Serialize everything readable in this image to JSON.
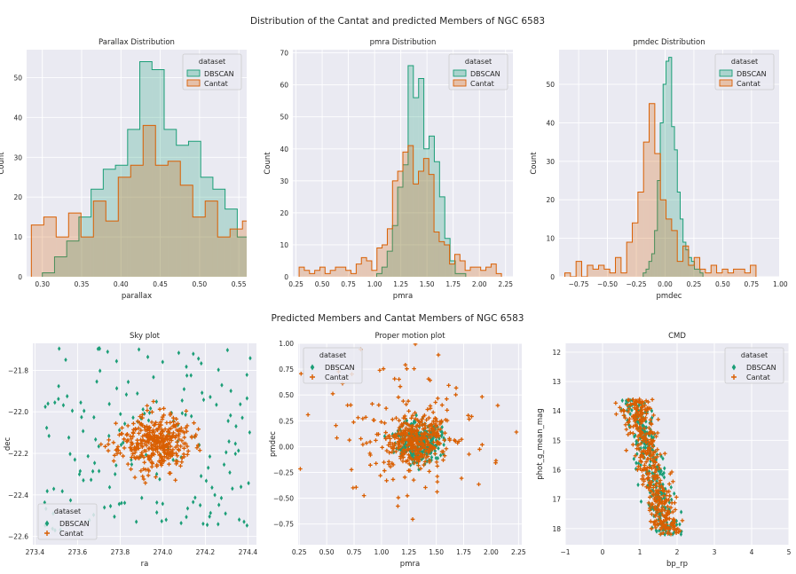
{
  "figure": {
    "title_top": "Distribution of the Cantat and predicted Members of NGC 6583",
    "title_bottom": "Predicted Members and Cantat Members of NGC 6583"
  },
  "colors": {
    "dbscan": "#1b9e77",
    "cantat": "#d95f02",
    "panel_bg": "#eaeaf2",
    "grid": "#ffffff"
  },
  "legend": {
    "title": "dataset",
    "dbscan_label": "DBSCAN",
    "cantat_label": "Cantat"
  },
  "chart_data": [
    {
      "type": "histogram",
      "title": "Parallax Distribution",
      "xlabel": "parallax",
      "ylabel": "Count",
      "xlim": [
        0.28,
        0.56
      ],
      "ylim": [
        0,
        57
      ],
      "xticks": [
        0.3,
        0.35,
        0.4,
        0.45,
        0.5,
        0.55
      ],
      "xtick_labels": [
        "0.30",
        "0.35",
        "0.40",
        "0.45",
        "0.50",
        "0.55"
      ],
      "yticks": [
        0,
        10,
        20,
        30,
        40,
        50
      ],
      "legend_loc": "upper right",
      "series": [
        {
          "name": "DBSCAN",
          "bin_start": 0.3,
          "bin_width": 0.0155,
          "counts": [
            1,
            5,
            9,
            15,
            22,
            27,
            28,
            37,
            54,
            52,
            37,
            33,
            34,
            25,
            22,
            17,
            10,
            7,
            5,
            5,
            1
          ]
        },
        {
          "name": "Cantat",
          "bin_start": 0.286,
          "bin_width": 0.0158,
          "counts": [
            13,
            15,
            10,
            16,
            10,
            19,
            14,
            25,
            28,
            38,
            28,
            29,
            23,
            15,
            19,
            10,
            12,
            14,
            7,
            7,
            16,
            12,
            13
          ]
        }
      ]
    },
    {
      "type": "histogram",
      "title": "pmra Distribution",
      "xlabel": "pmra",
      "ylabel": "Count",
      "xlim": [
        0.22,
        2.32
      ],
      "ylim": [
        0,
        71
      ],
      "xticks": [
        0.25,
        0.5,
        0.75,
        1.0,
        1.25,
        1.5,
        1.75,
        2.0,
        2.25
      ],
      "xtick_labels": [
        "0.25",
        "0.50",
        "0.75",
        "1.00",
        "1.25",
        "1.50",
        "1.75",
        "2.00",
        "2.25"
      ],
      "yticks": [
        0,
        10,
        20,
        30,
        40,
        50,
        60,
        70
      ],
      "legend_loc": "upper right",
      "series": [
        {
          "name": "DBSCAN",
          "bin_start": 1.02,
          "bin_width": 0.05,
          "counts": [
            1,
            3,
            8,
            16,
            28,
            35,
            66,
            56,
            62,
            40,
            44,
            36,
            25,
            12,
            5,
            1,
            1
          ]
        },
        {
          "name": "Cantat",
          "bin_start": 0.28,
          "bin_width": 0.0495,
          "counts": [
            3,
            2,
            1,
            2,
            3,
            1,
            2,
            3,
            3,
            2,
            1,
            4,
            6,
            5,
            2,
            9,
            10,
            15,
            30,
            33,
            39,
            41,
            29,
            33,
            37,
            32,
            14,
            11,
            10,
            4,
            7,
            5,
            2,
            3,
            3,
            2,
            3,
            4,
            1
          ]
        }
      ]
    },
    {
      "type": "histogram",
      "title": "pmdec Distribution",
      "xlabel": "pmdec",
      "ylabel": "Count",
      "xlim": [
        -0.92,
        0.99
      ],
      "ylim": [
        0,
        59
      ],
      "xticks": [
        -0.75,
        -0.5,
        -0.25,
        0.0,
        0.25,
        0.5,
        0.75,
        1.0
      ],
      "xtick_labels": [
        "−0.75",
        "−0.50",
        "−0.25",
        "0.00",
        "0.25",
        "0.50",
        "0.75",
        "1.00"
      ],
      "yticks": [
        0,
        10,
        20,
        30,
        40,
        50
      ],
      "legend_loc": "upper right",
      "series": [
        {
          "name": "DBSCAN",
          "bin_start": -0.19,
          "bin_width": 0.0247,
          "counts": [
            1,
            2,
            4,
            6,
            12,
            25,
            40,
            50,
            56,
            57,
            39,
            33,
            22,
            15,
            9,
            7,
            5,
            4,
            2,
            2,
            1
          ]
        },
        {
          "name": "Cantat",
          "bin_start": -0.87,
          "bin_width": 0.0488,
          "counts": [
            1,
            0,
            4,
            0,
            3,
            2,
            3,
            2,
            1,
            5,
            1,
            9,
            14,
            22,
            35,
            45,
            32,
            20,
            15,
            12,
            4,
            8,
            3,
            5,
            2,
            1,
            3,
            1,
            2,
            1,
            2,
            2,
            1,
            3
          ]
        }
      ]
    },
    {
      "type": "scatter",
      "title": "Sky plot",
      "xlabel": "ra",
      "ylabel": "dec",
      "xlim": [
        273.39,
        274.44
      ],
      "ylim": [
        -22.64,
        -21.67
      ],
      "y_inverted": true,
      "xticks": [
        273.4,
        273.6,
        273.8,
        274.0,
        274.2,
        274.4
      ],
      "xtick_labels": [
        "273.4",
        "273.6",
        "273.8",
        "274.0",
        "274.2",
        "274.4"
      ],
      "yticks": [
        -21.8,
        -22.0,
        -22.2,
        -22.4,
        -22.6
      ],
      "ytick_labels": [
        "−21.8",
        "−22.0",
        "−22.2",
        "−22.4",
        "−22.6"
      ],
      "legend_loc": "lower left",
      "series": [
        {
          "name": "DBSCAN",
          "marker": "diamond",
          "generator": {
            "kind": "wide",
            "n": 170,
            "cx": 273.92,
            "cy": -22.13,
            "sx": 0.26,
            "sy": 0.21,
            "seed": 11
          }
        },
        {
          "name": "Cantat",
          "marker": "plus",
          "generator": {
            "kind": "cluster",
            "n": 380,
            "cx": 273.96,
            "cy": -22.15,
            "sx": 0.085,
            "sy": 0.065,
            "seed": 23
          }
        }
      ]
    },
    {
      "type": "scatter",
      "title": "Proper motion plot",
      "xlabel": "pmra",
      "ylabel": "pmdec",
      "xlim": [
        0.24,
        2.28
      ],
      "ylim": [
        -0.95,
        1.0
      ],
      "xticks": [
        0.25,
        0.5,
        0.75,
        1.0,
        1.25,
        1.5,
        1.75,
        2.0,
        2.25
      ],
      "xtick_labels": [
        "0.25",
        "0.50",
        "0.75",
        "1.00",
        "1.25",
        "1.50",
        "1.75",
        "2.00",
        "2.25"
      ],
      "yticks": [
        -0.75,
        -0.5,
        -0.25,
        0.0,
        0.25,
        0.5,
        0.75,
        1.0
      ],
      "ytick_labels": [
        "−0.75",
        "−0.50",
        "−0.25",
        "0.00",
        "0.25",
        "0.50",
        "0.75",
        "1.00"
      ],
      "legend_loc": "upper left",
      "series": [
        {
          "name": "DBSCAN",
          "marker": "diamond",
          "generator": {
            "kind": "cluster",
            "n": 300,
            "cx": 1.34,
            "cy": 0.06,
            "sx": 0.1,
            "sy": 0.1,
            "seed": 37
          }
        },
        {
          "name": "Cantat",
          "marker": "plus",
          "generator": {
            "kind": "mixed",
            "n": 420,
            "cx": 1.3,
            "cy": 0.07,
            "sx": 0.14,
            "sy": 0.13,
            "wx": 0.45,
            "wy": 0.38,
            "frac_wide": 0.3,
            "seed": 41
          }
        }
      ]
    },
    {
      "type": "scatter",
      "title": "CMD",
      "xlabel": "bp_rp",
      "ylabel": "phot_g_mean_mag",
      "xlim": [
        -1,
        5
      ],
      "ylim": [
        18.55,
        11.7
      ],
      "y_inverted": true,
      "xticks": [
        -1,
        0,
        1,
        2,
        3,
        4,
        5
      ],
      "xtick_labels": [
        "−1",
        "0",
        "1",
        "2",
        "3",
        "4",
        "5"
      ],
      "yticks": [
        12,
        13,
        14,
        15,
        16,
        17,
        18
      ],
      "ytick_labels": [
        "12",
        "13",
        "14",
        "15",
        "16",
        "17",
        "18"
      ],
      "legend_loc": "upper right",
      "series": [
        {
          "name": "DBSCAN",
          "marker": "diamond",
          "generator": {
            "kind": "cmd",
            "n": 300,
            "seed": 53
          }
        },
        {
          "name": "Cantat",
          "marker": "plus",
          "generator": {
            "kind": "cmd",
            "n": 380,
            "seed": 67
          }
        }
      ]
    }
  ]
}
